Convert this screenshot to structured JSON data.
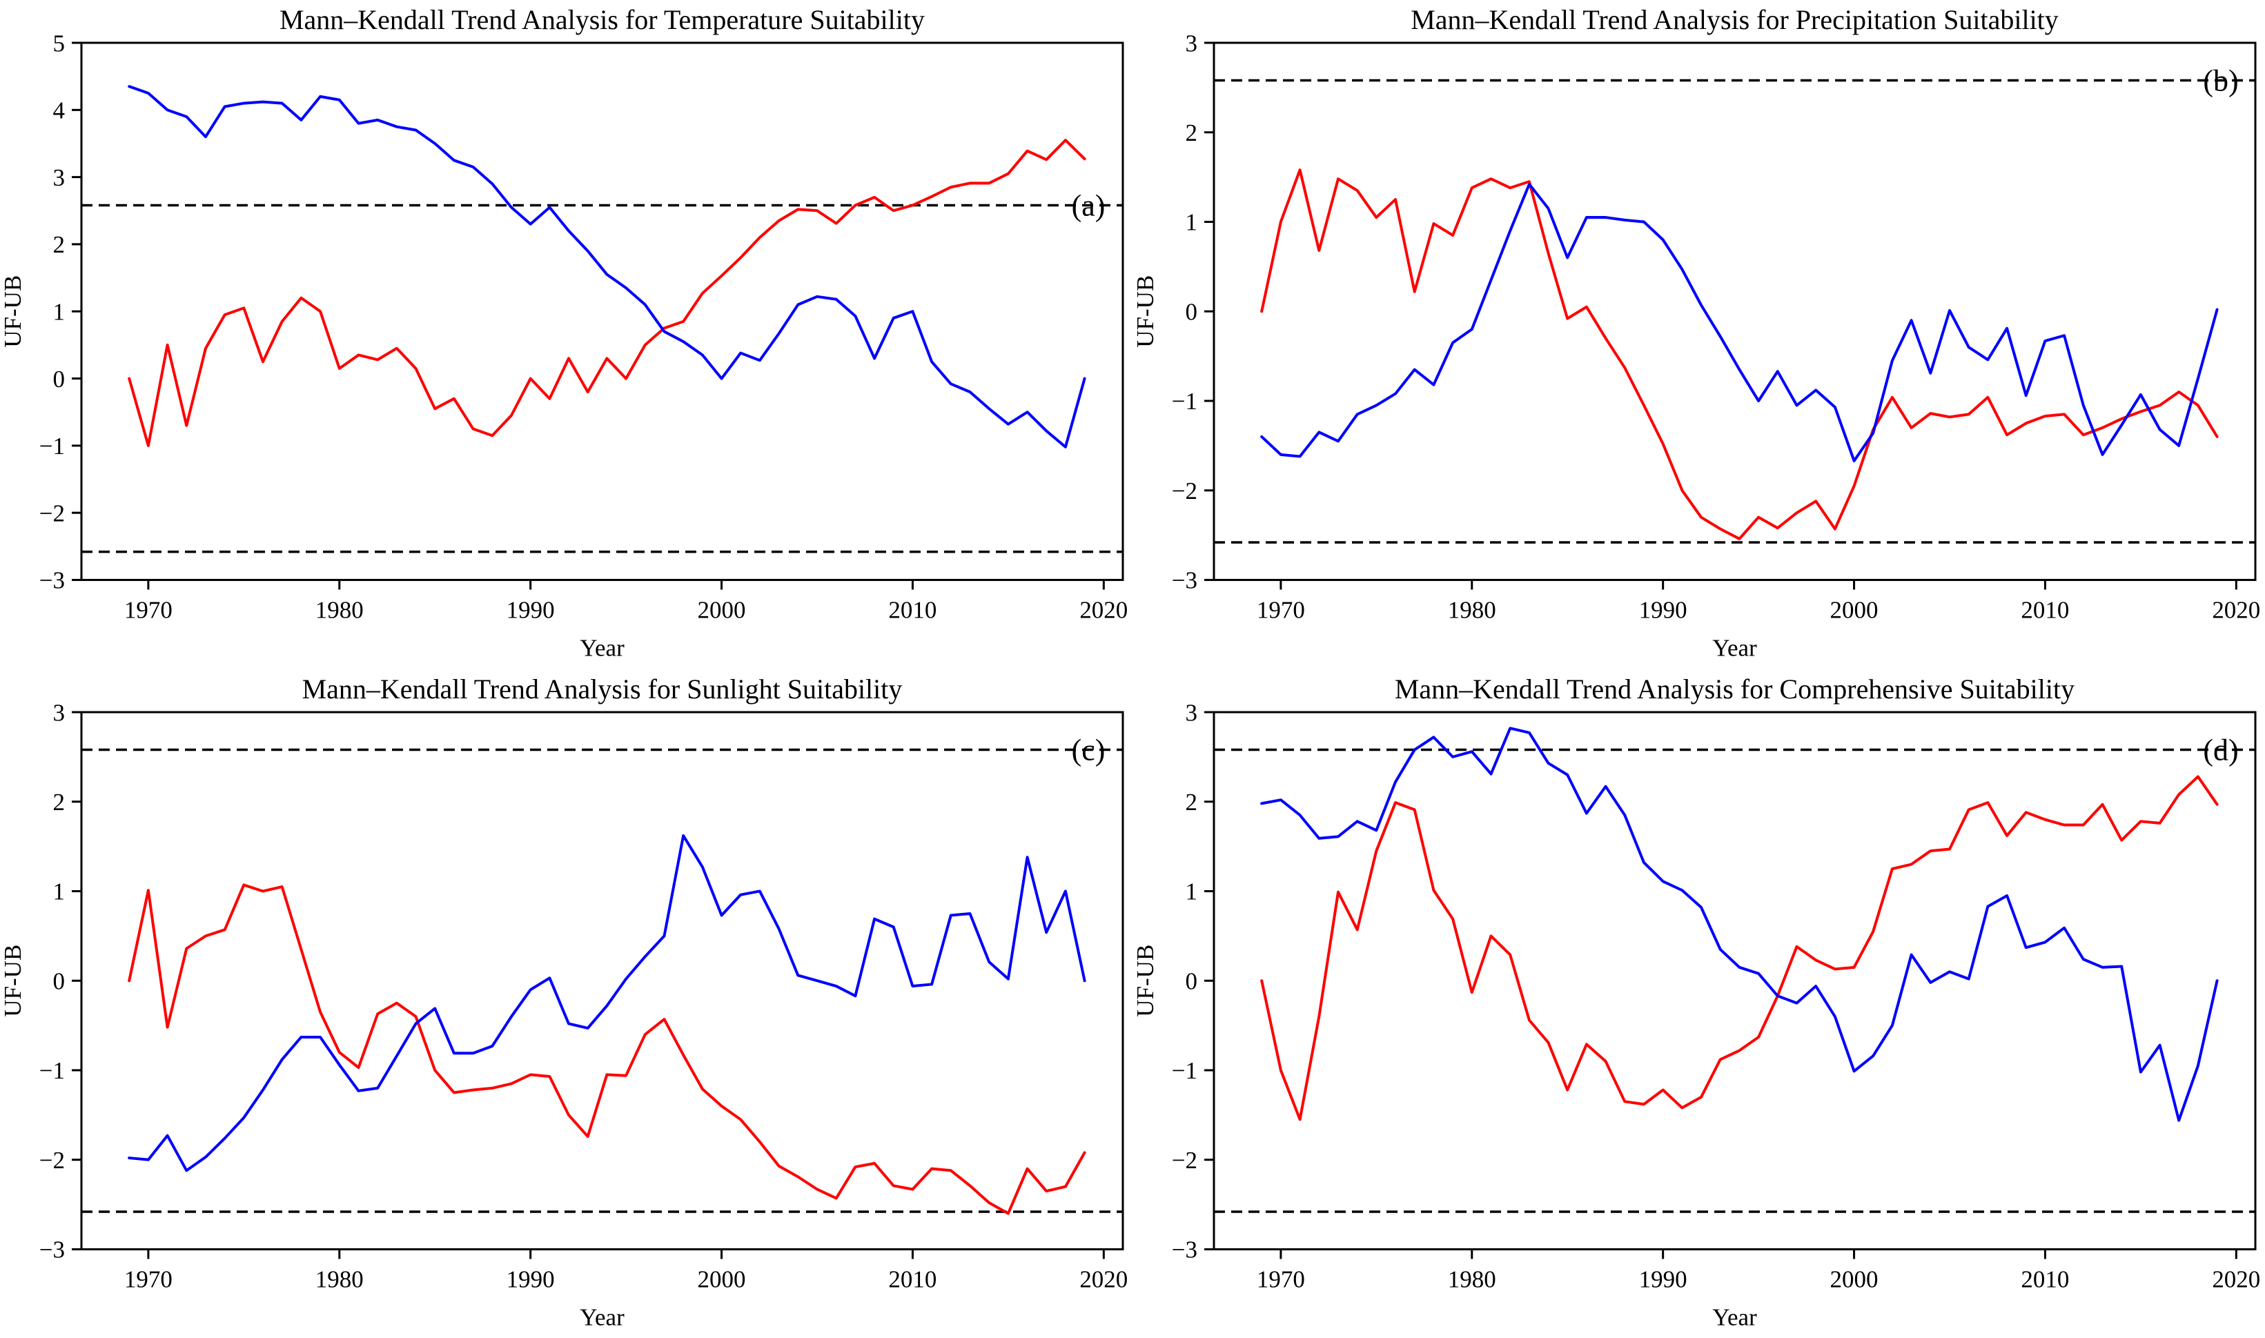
{
  "page": {
    "background": "#ffffff"
  },
  "labels": {
    "x_axis": "Year",
    "y_axis": "UF-UB"
  },
  "colors": {
    "uf_line": "#ff0000",
    "ub_line": "#0000ff",
    "axis": "#000000",
    "critical_line": "#000000",
    "text": "#000000"
  },
  "years": [
    1969,
    1970,
    1971,
    1972,
    1973,
    1974,
    1975,
    1976,
    1977,
    1978,
    1979,
    1980,
    1981,
    1982,
    1983,
    1984,
    1985,
    1986,
    1987,
    1988,
    1989,
    1990,
    1991,
    1992,
    1993,
    1994,
    1995,
    1996,
    1997,
    1998,
    1999,
    2000,
    2001,
    2002,
    2003,
    2004,
    2005,
    2006,
    2007,
    2008,
    2009,
    2010,
    2011,
    2012,
    2013,
    2014,
    2015,
    2016,
    2017,
    2018,
    2019
  ],
  "chart_data": [
    {
      "type": "line",
      "title": "Mann–Kendall Trend Analysis for Temperature Suitability",
      "corner_label": "(a)",
      "xlabel": "Year",
      "ylabel": "UF-UB",
      "xlim": [
        1966.5,
        2021
      ],
      "ylim": [
        -3,
        5
      ],
      "yticks": [
        5,
        4,
        3,
        2,
        1,
        0,
        -1,
        -2,
        -3
      ],
      "xticks": [
        1970,
        1980,
        1990,
        2000,
        2010,
        2020
      ],
      "grid": false,
      "critical_values": [
        2.58,
        -2.58
      ],
      "series": [
        {
          "name": "UF",
          "color": "#ff0000",
          "values": [
            0.0,
            -1.0,
            0.5,
            -0.7,
            0.45,
            0.95,
            1.05,
            0.25,
            0.85,
            1.2,
            1.0,
            0.15,
            0.35,
            0.28,
            0.45,
            0.15,
            -0.45,
            -0.3,
            -0.75,
            -0.85,
            -0.55,
            0.0,
            -0.3,
            0.3,
            -0.2,
            0.3,
            0.0,
            0.5,
            0.75,
            0.85,
            1.27,
            1.53,
            1.8,
            2.1,
            2.35,
            2.52,
            2.5,
            2.31,
            2.58,
            2.7,
            2.5,
            2.58,
            2.71,
            2.85,
            2.91,
            2.91,
            3.05,
            3.39,
            3.26,
            3.55,
            3.27
          ]
        },
        {
          "name": "UB",
          "color": "#0000ff",
          "values": [
            4.35,
            4.25,
            4.0,
            3.9,
            3.6,
            4.05,
            4.1,
            4.12,
            4.1,
            3.85,
            4.2,
            4.15,
            3.8,
            3.85,
            3.75,
            3.7,
            3.5,
            3.25,
            3.15,
            2.9,
            2.55,
            2.3,
            2.55,
            2.2,
            1.9,
            1.55,
            1.35,
            1.1,
            0.7,
            0.55,
            0.35,
            0.0,
            0.38,
            0.27,
            0.67,
            1.1,
            1.22,
            1.18,
            0.93,
            0.3,
            0.9,
            1.0,
            0.25,
            -0.08,
            -0.2,
            -0.45,
            -0.68,
            -0.5,
            -0.78,
            -1.02,
            0.0
          ]
        }
      ]
    },
    {
      "type": "line",
      "title": "Mann–Kendall Trend Analysis for Precipitation Suitability",
      "corner_label": "(b)",
      "xlabel": "Year",
      "ylabel": "UF-UB",
      "xlim": [
        1966.5,
        2021
      ],
      "ylim": [
        -3,
        3
      ],
      "yticks": [
        3,
        2,
        1,
        0,
        -1,
        -2,
        -3
      ],
      "xticks": [
        1970,
        1980,
        1990,
        2000,
        2010,
        2020
      ],
      "grid": false,
      "critical_values": [
        2.58,
        -2.58
      ],
      "series": [
        {
          "name": "UF",
          "color": "#ff0000",
          "values": [
            0.0,
            1.0,
            1.58,
            0.68,
            1.48,
            1.35,
            1.05,
            1.25,
            0.22,
            0.98,
            0.85,
            1.38,
            1.48,
            1.38,
            1.45,
            0.65,
            -0.08,
            0.05,
            -0.3,
            -0.63,
            -1.05,
            -1.48,
            -2.0,
            -2.3,
            -2.43,
            -2.54,
            -2.3,
            -2.42,
            -2.25,
            -2.12,
            -2.43,
            -1.95,
            -1.32,
            -0.96,
            -1.3,
            -1.14,
            -1.18,
            -1.15,
            -0.96,
            -1.38,
            -1.25,
            -1.17,
            -1.15,
            -1.38,
            -1.3,
            -1.2,
            -1.12,
            -1.05,
            -0.9,
            -1.05,
            -1.4
          ]
        },
        {
          "name": "UB",
          "color": "#0000ff",
          "values": [
            -1.4,
            -1.6,
            -1.62,
            -1.35,
            -1.45,
            -1.15,
            -1.05,
            -0.92,
            -0.65,
            -0.82,
            -0.35,
            -0.2,
            0.35,
            0.9,
            1.42,
            1.15,
            0.6,
            1.05,
            1.05,
            1.02,
            1.0,
            0.8,
            0.47,
            0.07,
            -0.28,
            -0.65,
            -1.0,
            -0.67,
            -1.05,
            -0.88,
            -1.07,
            -1.67,
            -1.36,
            -0.55,
            -0.1,
            -0.69,
            0.01,
            -0.4,
            -0.54,
            -0.19,
            -0.94,
            -0.33,
            -0.27,
            -1.05,
            -1.6,
            -1.27,
            -0.93,
            -1.32,
            -1.5,
            -0.75,
            0.02
          ]
        }
      ]
    },
    {
      "type": "line",
      "title": "Mann–Kendall Trend Analysis for Sunlight Suitability",
      "corner_label": "(c)",
      "xlabel": "Year",
      "ylabel": "UF-UB",
      "xlim": [
        1966.5,
        2021
      ],
      "ylim": [
        -3,
        3
      ],
      "yticks": [
        3,
        2,
        1,
        0,
        -1,
        -2,
        -3
      ],
      "xticks": [
        1970,
        1980,
        1990,
        2000,
        2010,
        2020
      ],
      "grid": false,
      "critical_values": [
        2.58,
        -2.58
      ],
      "series": [
        {
          "name": "UF",
          "color": "#ff0000",
          "values": [
            0.0,
            1.01,
            -0.52,
            0.36,
            0.5,
            0.57,
            1.07,
            1.0,
            1.05,
            0.35,
            -0.35,
            -0.8,
            -0.97,
            -0.37,
            -0.25,
            -0.4,
            -1.0,
            -1.25,
            -1.22,
            -1.2,
            -1.15,
            -1.05,
            -1.07,
            -1.5,
            -1.74,
            -1.05,
            -1.06,
            -0.6,
            -0.43,
            -0.83,
            -1.21,
            -1.4,
            -1.55,
            -1.8,
            -2.07,
            -2.19,
            -2.33,
            -2.43,
            -2.08,
            -2.04,
            -2.29,
            -2.33,
            -2.1,
            -2.12,
            -2.29,
            -2.48,
            -2.6,
            -2.1,
            -2.35,
            -2.3,
            -1.92
          ]
        },
        {
          "name": "UB",
          "color": "#0000ff",
          "values": [
            -1.98,
            -2.0,
            -1.73,
            -2.12,
            -1.97,
            -1.76,
            -1.53,
            -1.22,
            -0.88,
            -0.63,
            -0.63,
            -0.94,
            -1.23,
            -1.2,
            -0.84,
            -0.48,
            -0.31,
            -0.81,
            -0.81,
            -0.73,
            -0.4,
            -0.1,
            0.03,
            -0.48,
            -0.53,
            -0.28,
            0.02,
            0.27,
            0.5,
            1.62,
            1.27,
            0.73,
            0.96,
            1.0,
            0.58,
            0.06,
            0.0,
            -0.06,
            -0.17,
            0.69,
            0.6,
            -0.06,
            -0.04,
            0.73,
            0.75,
            0.21,
            0.02,
            1.38,
            0.54,
            1.0,
            0.0
          ]
        }
      ]
    },
    {
      "type": "line",
      "title": "Mann–Kendall Trend Analysis for Comprehensive Suitability",
      "corner_label": "(d)",
      "xlabel": "Year",
      "ylabel": "UF-UB",
      "xlim": [
        1966.5,
        2021
      ],
      "ylim": [
        -3,
        3
      ],
      "yticks": [
        3,
        2,
        1,
        0,
        -1,
        -2,
        -3
      ],
      "xticks": [
        1970,
        1980,
        1990,
        2000,
        2010,
        2020
      ],
      "grid": false,
      "critical_values": [
        2.58,
        -2.58
      ],
      "series": [
        {
          "name": "UF",
          "color": "#ff0000",
          "values": [
            0.0,
            -1.0,
            -1.55,
            -0.4,
            0.99,
            0.57,
            1.45,
            1.99,
            1.91,
            1.01,
            0.69,
            -0.13,
            0.5,
            0.29,
            -0.44,
            -0.69,
            -1.22,
            -0.71,
            -0.9,
            -1.35,
            -1.38,
            -1.22,
            -1.42,
            -1.3,
            -0.88,
            -0.78,
            -0.63,
            -0.17,
            0.38,
            0.23,
            0.13,
            0.15,
            0.55,
            1.25,
            1.3,
            1.45,
            1.47,
            1.91,
            1.99,
            1.62,
            1.88,
            1.8,
            1.74,
            1.74,
            1.97,
            1.57,
            1.78,
            1.76,
            2.08,
            2.28,
            1.97
          ]
        },
        {
          "name": "UB",
          "color": "#0000ff",
          "values": [
            1.98,
            2.02,
            1.85,
            1.59,
            1.61,
            1.78,
            1.68,
            2.22,
            2.58,
            2.72,
            2.5,
            2.56,
            2.31,
            2.82,
            2.77,
            2.43,
            2.3,
            1.87,
            2.17,
            1.85,
            1.32,
            1.11,
            1.01,
            0.82,
            0.35,
            0.15,
            0.08,
            -0.17,
            -0.25,
            -0.06,
            -0.4,
            -1.01,
            -0.84,
            -0.5,
            0.29,
            -0.02,
            0.1,
            0.02,
            0.83,
            0.95,
            0.37,
            0.43,
            0.59,
            0.24,
            0.15,
            0.16,
            -1.02,
            -0.72,
            -1.56,
            -0.95,
            0.0
          ]
        }
      ]
    }
  ]
}
